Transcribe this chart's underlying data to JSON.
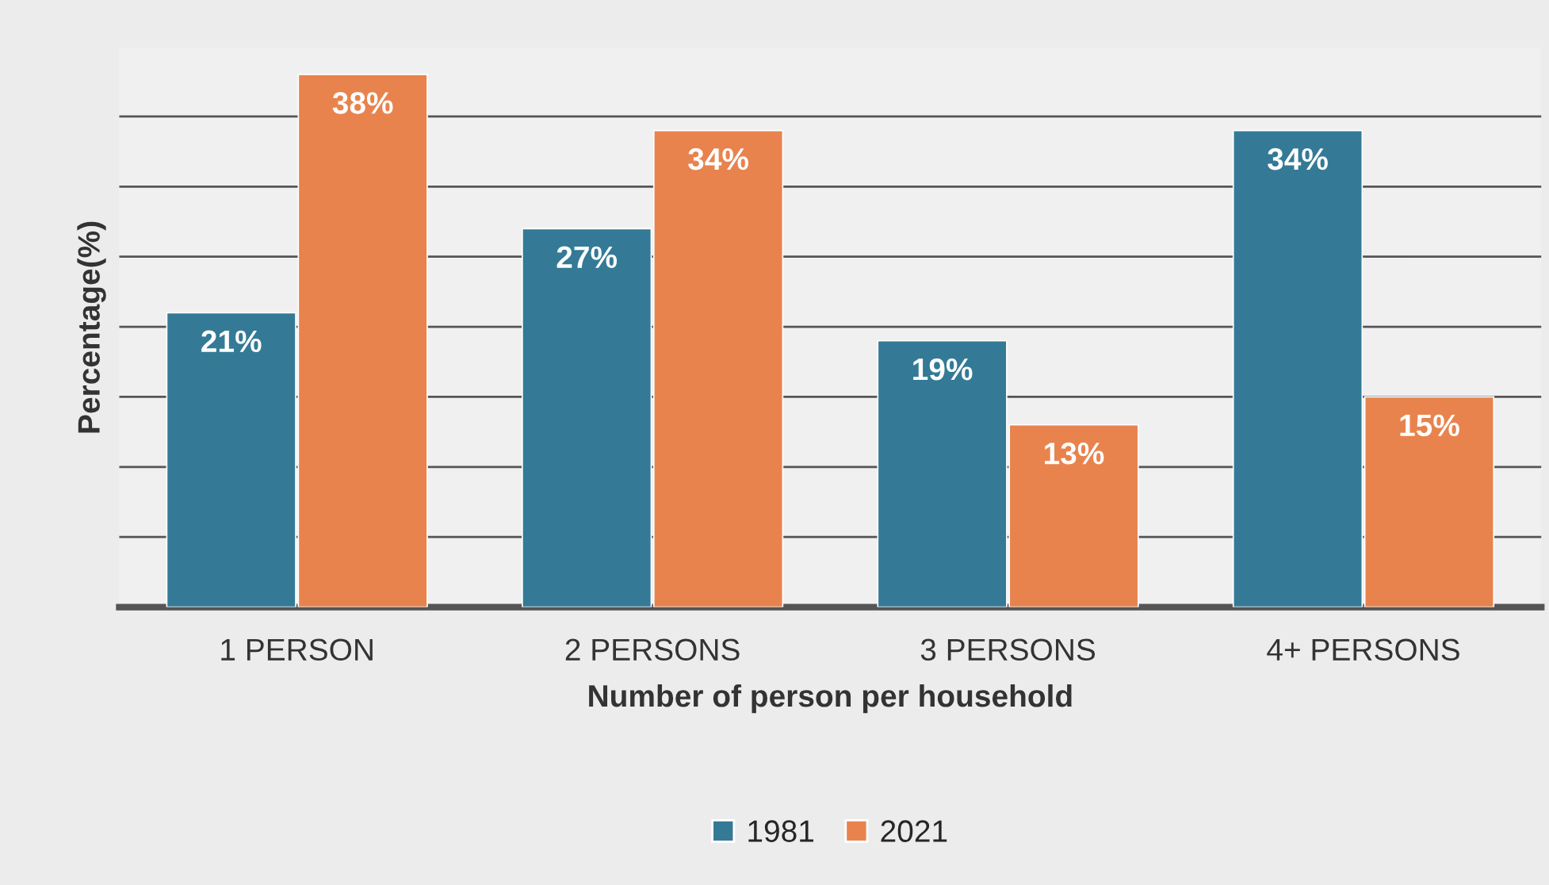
{
  "chart_data": {
    "type": "bar",
    "xlabel": "Number of person per household",
    "ylabel": "Percentage(%)",
    "categories": [
      "1 PERSON",
      "2 PERSONS",
      "3 PERSONS",
      "4+ PERSONS"
    ],
    "series": [
      {
        "name": "1981",
        "color": "#347a96",
        "values": [
          21,
          27,
          19,
          34
        ],
        "value_labels": [
          "21%",
          "27%",
          "19%",
          "34%"
        ]
      },
      {
        "name": "2021",
        "color": "#e8834e",
        "values": [
          38,
          34,
          13,
          15
        ],
        "value_labels": [
          "38%",
          "34%",
          "13%",
          "15%"
        ]
      }
    ],
    "tick_labels": "x",
    "grid": "y",
    "legend": "bottom"
  }
}
